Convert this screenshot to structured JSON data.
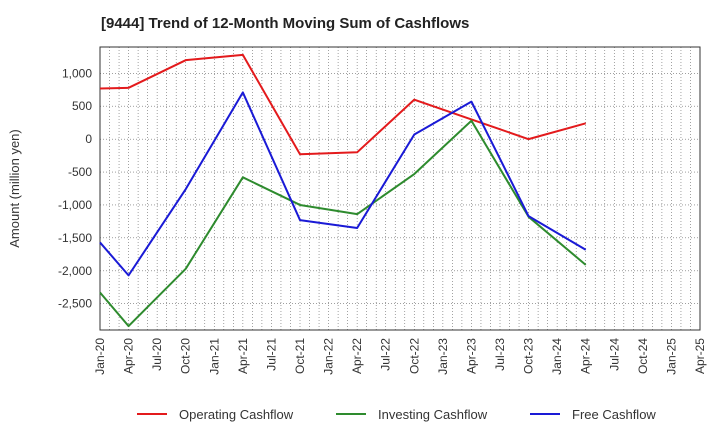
{
  "chart_data": {
    "type": "line",
    "title": "[9444]  Trend of 12-Month Moving Sum of Cashflows",
    "xlabel": "",
    "ylabel": "Amount (million yen)",
    "ylim": [
      -2900,
      1400
    ],
    "yticks": [
      1000,
      500,
      0,
      -500,
      -1000,
      -1500,
      -2000,
      -2500
    ],
    "ytick_labels": [
      "1,000",
      "500",
      "0",
      "-500",
      "-1,000",
      "-1,500",
      "-2,000",
      "-2,500"
    ],
    "categories": [
      "Jan-20",
      "Apr-20",
      "Jul-20",
      "Oct-20",
      "Jan-21",
      "Apr-21",
      "Jul-21",
      "Oct-21",
      "Jan-22",
      "Apr-22",
      "Jul-22",
      "Oct-22",
      "Jan-23",
      "Apr-23",
      "Jul-23",
      "Oct-23",
      "Jan-24",
      "Apr-24",
      "Jul-24",
      "Oct-24",
      "Jan-25",
      "Apr-25"
    ],
    "grid": true,
    "legend_position": "bottom",
    "series": [
      {
        "name": "Operating Cashflow",
        "color": "#e31a1c",
        "points": [
          [
            "Jan-20",
            770
          ],
          [
            "Apr-20",
            780
          ],
          [
            "Oct-20",
            1200
          ],
          [
            "Apr-21",
            1280
          ],
          [
            "Oct-21",
            -230
          ],
          [
            "Apr-22",
            -200
          ],
          [
            "Oct-22",
            600
          ],
          [
            "Apr-23",
            300
          ],
          [
            "Oct-23",
            0
          ],
          [
            "Apr-24",
            240
          ]
        ]
      },
      {
        "name": "Investing Cashflow",
        "color": "#2e8b2e",
        "points": [
          [
            "Jan-20",
            -2330
          ],
          [
            "Apr-20",
            -2840
          ],
          [
            "Oct-20",
            -1970
          ],
          [
            "Apr-21",
            -580
          ],
          [
            "Oct-21",
            -1000
          ],
          [
            "Apr-22",
            -1140
          ],
          [
            "Oct-22",
            -530
          ],
          [
            "Apr-23",
            280
          ],
          [
            "Oct-23",
            -1180
          ],
          [
            "Apr-24",
            -1910
          ]
        ]
      },
      {
        "name": "Free Cashflow",
        "color": "#1a1ad6",
        "points": [
          [
            "Jan-20",
            -1570
          ],
          [
            "Apr-20",
            -2070
          ],
          [
            "Oct-20",
            -760
          ],
          [
            "Apr-21",
            710
          ],
          [
            "Oct-21",
            -1230
          ],
          [
            "Apr-22",
            -1350
          ],
          [
            "Oct-22",
            70
          ],
          [
            "Apr-23",
            570
          ],
          [
            "Oct-23",
            -1170
          ],
          [
            "Apr-24",
            -1680
          ]
        ]
      }
    ]
  }
}
